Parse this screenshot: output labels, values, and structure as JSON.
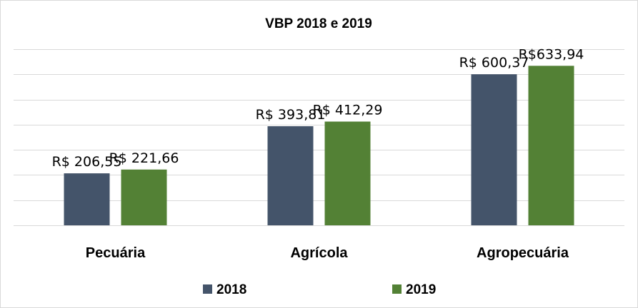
{
  "chart_data": {
    "type": "bar",
    "title": "VBP 2018 e 2019",
    "categories": [
      "Pecuária",
      "Agrícola",
      "Agropecuária"
    ],
    "series": [
      {
        "name": "2018",
        "color": "#44546a",
        "values": [
          206.55,
          393.81,
          600.37
        ],
        "labels": [
          "R$ 206,55",
          "R$ 393,81",
          "R$ 600,37"
        ]
      },
      {
        "name": "2019",
        "color": "#538135",
        "values": [
          221.66,
          412.29,
          633.94
        ],
        "labels": [
          "R$ 221,66",
          "R$ 412,29",
          "R$633,94"
        ]
      }
    ],
    "xlabel": "",
    "ylabel": "",
    "ylim": [
      0,
      700
    ],
    "grid": true,
    "legend": "bottom"
  }
}
